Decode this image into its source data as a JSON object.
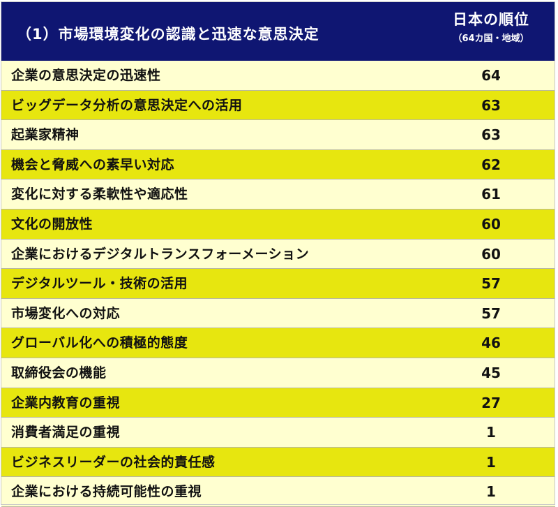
{
  "header": {
    "title": "（1）市場環境変化の認識と迅速な意思決定",
    "column_title": "日本の順位",
    "column_subtitle": "（64カ国・地域）"
  },
  "rows": [
    {
      "label": "企業の意思決定の迅速性",
      "rank": "64"
    },
    {
      "label": "ビッグデータ分析の意思決定への活用",
      "rank": "63"
    },
    {
      "label": "起業家精神",
      "rank": "63"
    },
    {
      "label": "機会と脅威への素早い対応",
      "rank": "62"
    },
    {
      "label": "変化に対する柔軟性や適応性",
      "rank": "61"
    },
    {
      "label": "文化の開放性",
      "rank": "60"
    },
    {
      "label": "企業におけるデジタルトランスフォーメーション",
      "rank": "60"
    },
    {
      "label": "デジタルツール・技術の活用",
      "rank": "57"
    },
    {
      "label": "市場変化への対応",
      "rank": "57"
    },
    {
      "label": "グローバル化への積極的態度",
      "rank": "46"
    },
    {
      "label": "取締役会の機能",
      "rank": "45"
    },
    {
      "label": "企業内教育の重視",
      "rank": "27"
    },
    {
      "label": "消費者満足の重視",
      "rank": "1"
    },
    {
      "label": "ビジネスリーダーの社会的責任感",
      "rank": "1"
    },
    {
      "label": "企業における持続可能性の重視",
      "rank": "1"
    }
  ],
  "colors": {
    "header_bg": "#0f1672",
    "row_light": "#ffffd0",
    "row_yellow": "#e7e60f"
  }
}
